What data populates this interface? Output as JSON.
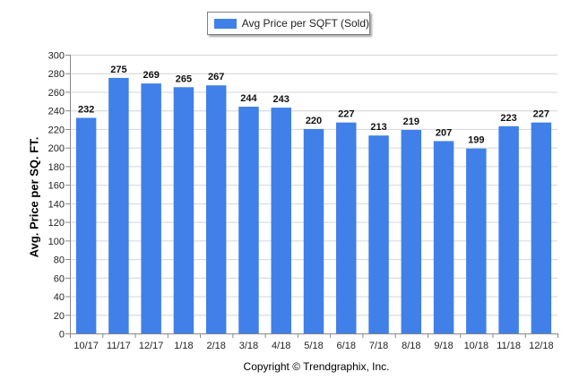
{
  "chart_data": {
    "type": "bar",
    "categories": [
      "10/17",
      "11/17",
      "12/17",
      "1/18",
      "2/18",
      "3/18",
      "4/18",
      "5/18",
      "6/18",
      "7/18",
      "8/18",
      "9/18",
      "10/18",
      "11/18",
      "12/18"
    ],
    "series": [
      {
        "name": "Avg Price per SQFT (Sold)",
        "values": [
          232,
          275,
          269,
          265,
          267,
          244,
          243,
          220,
          227,
          213,
          219,
          207,
          199,
          223,
          227
        ]
      }
    ],
    "ylabel": "Avg. Price per SQ. FT.",
    "xlabel": "",
    "ylim": [
      0,
      300
    ],
    "yticks": [
      0,
      20,
      40,
      60,
      80,
      100,
      120,
      140,
      160,
      180,
      200,
      220,
      240,
      260,
      280,
      300
    ],
    "grid": true,
    "legend_position": "top-center",
    "bar_color": "#4080e8",
    "data_labels": true
  },
  "footer": {
    "copyright": "Copyright © Trendgraphix, Inc."
  }
}
